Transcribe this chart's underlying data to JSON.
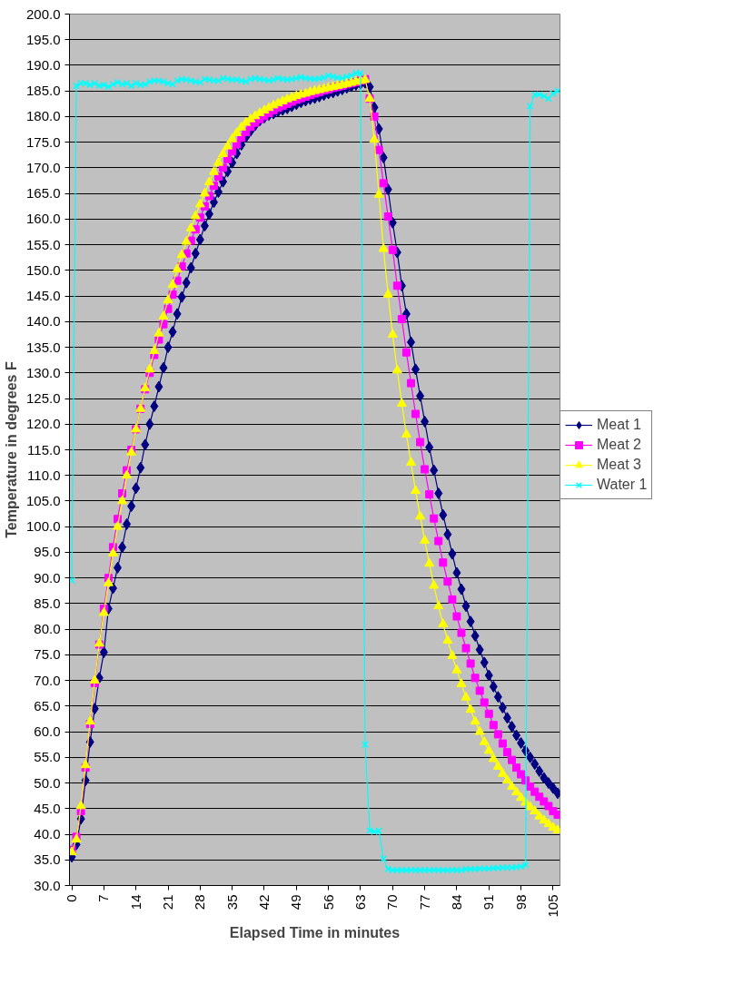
{
  "chart_data": {
    "type": "line",
    "xlabel": "Elapsed Time in minutes",
    "ylabel": "Temperature in degrees F",
    "x": [
      0,
      1,
      2,
      3,
      4,
      5,
      6,
      7,
      8,
      9,
      10,
      11,
      12,
      13,
      14,
      15,
      16,
      17,
      18,
      19,
      20,
      21,
      22,
      23,
      24,
      25,
      26,
      27,
      28,
      29,
      30,
      31,
      32,
      33,
      34,
      35,
      36,
      37,
      38,
      39,
      40,
      41,
      42,
      43,
      44,
      45,
      46,
      47,
      48,
      49,
      50,
      51,
      52,
      53,
      54,
      55,
      56,
      57,
      58,
      59,
      60,
      61,
      62,
      63,
      64,
      65,
      66,
      67,
      68,
      69,
      70,
      71,
      72,
      73,
      74,
      75,
      76,
      77,
      78,
      79,
      80,
      81,
      82,
      83,
      84,
      85,
      86,
      87,
      88,
      89,
      90,
      91,
      92,
      93,
      94,
      95,
      96,
      97,
      98,
      99,
      100,
      101,
      102,
      103,
      104,
      105,
      106
    ],
    "series": [
      {
        "name": "Meat 1",
        "color": "#000080",
        "marker": "diamond",
        "values": [
          35.6,
          38,
          43,
          50.5,
          58,
          64.5,
          70.5,
          75.5,
          84,
          88,
          92,
          96,
          100.5,
          104,
          107.5,
          111.5,
          116,
          120,
          123.5,
          127.3,
          131,
          135,
          138,
          141.5,
          144.8,
          147.6,
          150.5,
          153.3,
          156,
          158.7,
          161,
          163.3,
          165.3,
          167.3,
          169.3,
          171,
          172.8,
          174.5,
          176,
          177.2,
          178.3,
          179.2,
          179.8,
          180.3,
          180.6,
          181,
          181.3,
          181.6,
          182,
          182.4,
          182.8,
          183.1,
          183.4,
          183.6,
          183.9,
          184.2,
          184.5,
          184.7,
          185,
          185.3,
          185.6,
          185.9,
          186.2,
          186.4,
          186.6,
          185.8,
          181.8,
          177.6,
          172,
          165.8,
          159.3,
          153.5,
          147,
          141.5,
          136,
          130.7,
          125.5,
          120.5,
          115.5,
          111,
          106.5,
          102.3,
          98.5,
          94.7,
          91,
          87.8,
          84.5,
          81.5,
          78.7,
          76,
          73.5,
          71,
          68.8,
          66.8,
          64.7,
          62.7,
          61,
          59.3,
          57.8,
          56.3,
          55,
          53.7,
          52.3,
          51,
          50,
          49,
          48
        ]
      },
      {
        "name": "Meat 2",
        "color": "#ff00ff",
        "marker": "square",
        "values": [
          37,
          39.5,
          44.5,
          53,
          61.5,
          69.5,
          77,
          84,
          90,
          96,
          101.5,
          106.5,
          111,
          115,
          119,
          123,
          126.8,
          130,
          133.5,
          136.5,
          139.5,
          142.5,
          145.3,
          148,
          150.8,
          153.3,
          155.8,
          158,
          160.3,
          162.5,
          164.5,
          166.5,
          168.3,
          170,
          171.7,
          173.2,
          174.6,
          175.9,
          177,
          178,
          178.8,
          179.5,
          180.1,
          180.7,
          181.2,
          181.7,
          182.1,
          182.5,
          182.9,
          183.3,
          183.6,
          183.9,
          184.2,
          184.5,
          184.8,
          185.1,
          185.3,
          185.6,
          185.8,
          186,
          186.3,
          186.5,
          186.7,
          187,
          187.3,
          183.5,
          180,
          173.5,
          167,
          160.5,
          154,
          147,
          140.5,
          134,
          128,
          122,
          116.5,
          111.2,
          106.3,
          101.6,
          97.2,
          93,
          89.3,
          85.8,
          82.5,
          79.3,
          76.3,
          73.3,
          70.5,
          68,
          65.7,
          63.5,
          61.3,
          59.5,
          57.7,
          56,
          54.5,
          53,
          51.7,
          50.5,
          49.3,
          48.3,
          47.3,
          46.4,
          45.5,
          44.5,
          43.8
        ]
      },
      {
        "name": "Meat 3",
        "color": "#ffff00",
        "marker": "triangle",
        "values": [
          36.5,
          39,
          45.5,
          53.5,
          62,
          70,
          77.2,
          83.2,
          89,
          94.8,
          100,
          105,
          110,
          114.5,
          119,
          123,
          127,
          130.7,
          134.3,
          137.7,
          141,
          144.2,
          147.2,
          150.2,
          153,
          155.6,
          158.2,
          160.6,
          162.9,
          165,
          167.2,
          169.2,
          171,
          172.7,
          174.2,
          175.6,
          176.8,
          177.9,
          178.8,
          179.5,
          180.1,
          180.7,
          181.2,
          181.7,
          182.2,
          182.6,
          183,
          183.4,
          183.7,
          184,
          184.3,
          184.5,
          184.8,
          185,
          185.2,
          185.4,
          185.6,
          185.8,
          186,
          186.2,
          186.4,
          186.6,
          186.8,
          187,
          187.2,
          183.5,
          175.5,
          164.8,
          154.2,
          145.3,
          137.5,
          130.5,
          124,
          118,
          112.5,
          107,
          102,
          97.3,
          92.8,
          88.5,
          84.5,
          81,
          77.8,
          74.8,
          72,
          69.3,
          66.7,
          64.3,
          62,
          60,
          58,
          56.3,
          54.7,
          53.2,
          51.8,
          50.5,
          49.3,
          48.2,
          47.1,
          46.2,
          45.3,
          44.5,
          43.5,
          42.7,
          42,
          41.3,
          40.8
        ]
      },
      {
        "name": "Water 1",
        "color": "#00ffff",
        "marker": "cross",
        "values": [
          89.5,
          186,
          186.5,
          186.5,
          186.2,
          186.5,
          186,
          186.2,
          185.8,
          186.3,
          186.7,
          186.3,
          186.5,
          186,
          186.5,
          186.2,
          186.3,
          186.8,
          187,
          187,
          186.8,
          186.5,
          186.3,
          187,
          187.3,
          187.2,
          187,
          186.8,
          186.7,
          187.3,
          187.2,
          187,
          187,
          187.5,
          187.3,
          187.2,
          187.2,
          187,
          186.8,
          187.3,
          187.5,
          187.3,
          187.2,
          187,
          187.2,
          187.5,
          187.3,
          187.2,
          187.3,
          187.5,
          187.7,
          187.5,
          187.4,
          187.3,
          187.4,
          187.6,
          188,
          187.8,
          187.6,
          187.5,
          187.8,
          188,
          188.5,
          188.5,
          57.5,
          40.7,
          40.5,
          40.7,
          35.2,
          33.2,
          33,
          33,
          33,
          33,
          33,
          33,
          33,
          33,
          33,
          33,
          33,
          33,
          33,
          33,
          33,
          33,
          33.2,
          33.2,
          33.2,
          33.3,
          33.3,
          33.3,
          33.4,
          33.4,
          33.5,
          33.5,
          33.5,
          33.6,
          33.7,
          34,
          182,
          184.3,
          184.3,
          184,
          183.5,
          184.5,
          185
        ]
      }
    ],
    "xlim": [
      -0.5,
      106.5
    ],
    "xticks": [
      0,
      7,
      14,
      21,
      28,
      35,
      42,
      49,
      56,
      63,
      70,
      77,
      84,
      91,
      98,
      105
    ],
    "ylim": [
      30,
      200
    ],
    "yticks": [
      {
        "value": 30,
        "label": "30.0"
      },
      {
        "value": 35,
        "label": "35.0"
      },
      {
        "value": 40,
        "label": "40.0"
      },
      {
        "value": 45,
        "label": "45.0"
      },
      {
        "value": 50,
        "label": "50.0"
      },
      {
        "value": 55,
        "label": "55.0"
      },
      {
        "value": 60,
        "label": "60.0"
      },
      {
        "value": 65,
        "label": "65.0"
      },
      {
        "value": 70,
        "label": "70.0"
      },
      {
        "value": 75,
        "label": "75.0"
      },
      {
        "value": 80,
        "label": "80.0"
      },
      {
        "value": 85,
        "label": "85.0"
      },
      {
        "value": 90,
        "label": "90.0"
      },
      {
        "value": 95,
        "label": "95.0"
      },
      {
        "value": 100,
        "label": "100.0"
      },
      {
        "value": 105,
        "label": "105.0"
      },
      {
        "value": 110,
        "label": "110.0"
      },
      {
        "value": 115,
        "label": "115.0"
      },
      {
        "value": 120,
        "label": "120.0"
      },
      {
        "value": 125,
        "label": "125.0"
      },
      {
        "value": 130,
        "label": "130.0"
      },
      {
        "value": 135,
        "label": "135.0"
      },
      {
        "value": 140,
        "label": "140.0"
      },
      {
        "value": 145,
        "label": "145.0"
      },
      {
        "value": 150,
        "label": "150.0"
      },
      {
        "value": 155,
        "label": "155.0"
      },
      {
        "value": 160,
        "label": "160.0"
      },
      {
        "value": 165,
        "label": "165.0"
      },
      {
        "value": 170,
        "label": "170.0"
      },
      {
        "value": 175,
        "label": "175.0"
      },
      {
        "value": 180,
        "label": "180.0"
      },
      {
        "value": 185,
        "label": "185.0"
      },
      {
        "value": 190,
        "label": "190.0"
      },
      {
        "value": 195,
        "label": "195.0"
      },
      {
        "value": 200,
        "label": "200.0"
      }
    ],
    "grid": "y",
    "legend": "right",
    "line_style": "solid"
  }
}
